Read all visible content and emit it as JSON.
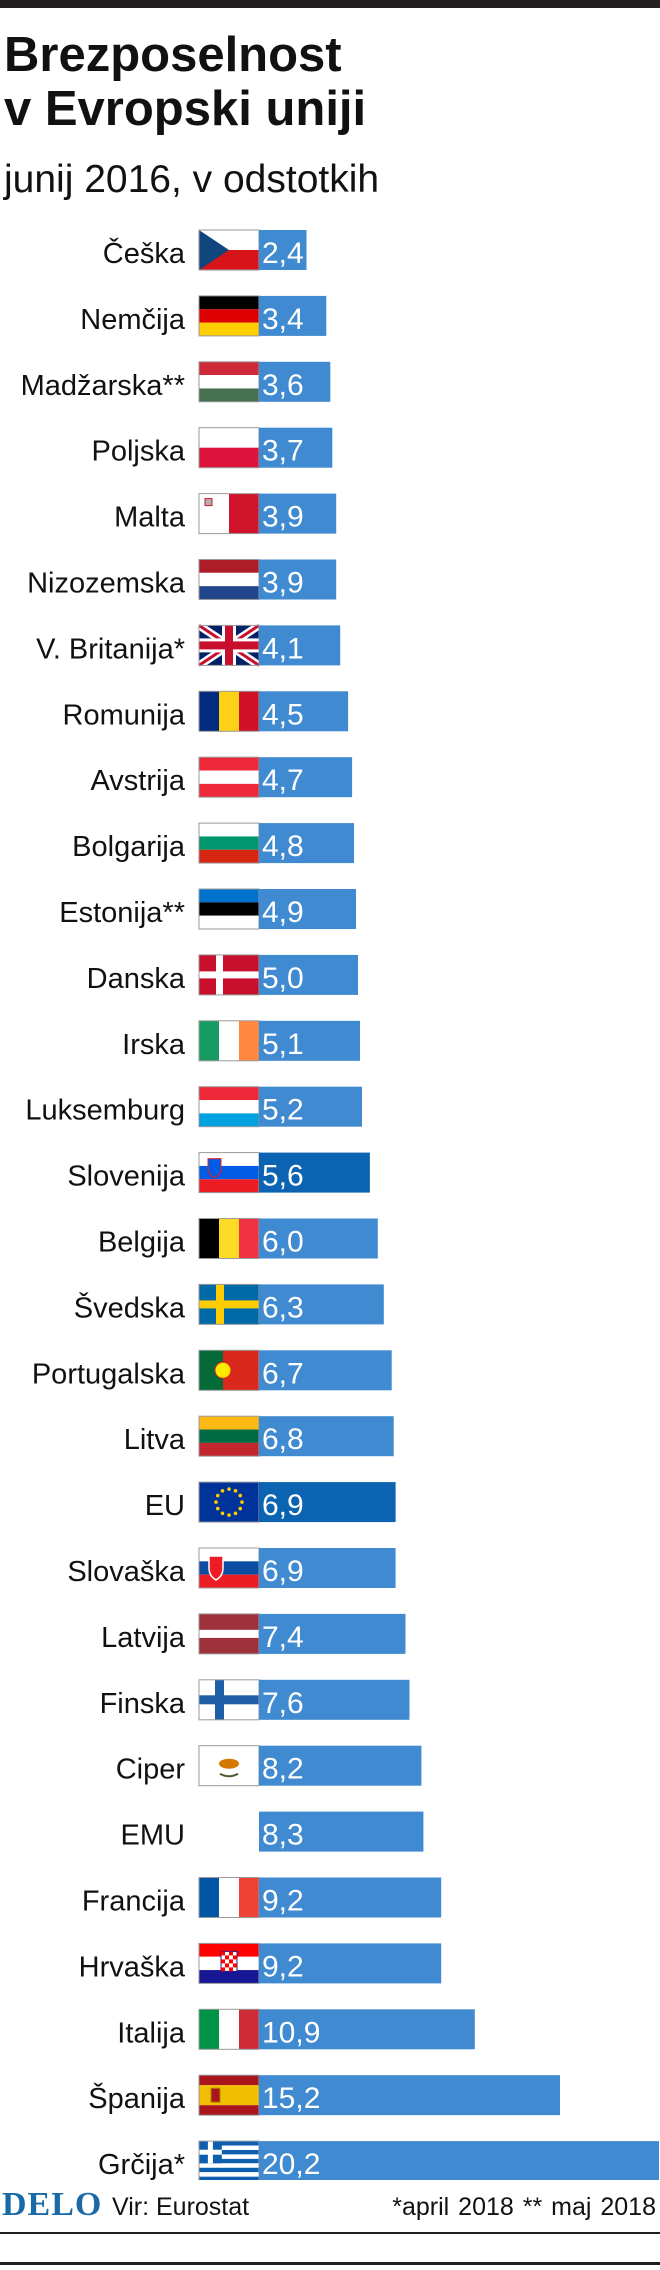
{
  "header": {
    "title_line1": "Brezposelnost",
    "title_line2": "v Evropski uniji",
    "subtitle": "junij 2016, v odstotkih"
  },
  "footer": {
    "logo": "DELO",
    "source": "Vir: Eurostat",
    "notes": "*april 2018  ** maj 2018"
  },
  "colors": {
    "bar": "#3f8ad0",
    "highlight_bar": "#0b63b2",
    "value_text": "#ffffff"
  },
  "chart_data": {
    "type": "bar",
    "orientation": "horizontal",
    "title": "Brezposelnost v Evropski uniji",
    "subtitle": "junij 2016, v odstotkih",
    "categories": [
      "Češka",
      "Nemčija",
      "Madžarska**",
      "Poljska",
      "Malta",
      "Nizozemska",
      "V. Britanija*",
      "Romunija",
      "Avstrija",
      "Bolgarija",
      "Estonija**",
      "Danska",
      "Irska",
      "Luksemburg",
      "Slovenija",
      "Belgija",
      "Švedska",
      "Portugalska",
      "Litva",
      "EU",
      "Slovaška",
      "Latvija",
      "Finska",
      "Ciper",
      "EMU",
      "Francija",
      "Hrvaška",
      "Italija",
      "Španija",
      "Grčija*"
    ],
    "values": [
      2.4,
      3.4,
      3.6,
      3.7,
      3.9,
      3.9,
      4.1,
      4.5,
      4.7,
      4.8,
      4.9,
      5.0,
      5.1,
      5.2,
      5.6,
      6.0,
      6.3,
      6.7,
      6.8,
      6.9,
      6.9,
      7.4,
      7.6,
      8.2,
      8.3,
      9.2,
      9.2,
      10.9,
      15.2,
      20.2
    ],
    "value_labels": [
      "2,4",
      "3,4",
      "3,6",
      "3,7",
      "3,9",
      "3,9",
      "4,1",
      "4,5",
      "4,7",
      "4,8",
      "4,9",
      "5,0",
      "5,1",
      "5,2",
      "5,6",
      "6,0",
      "6,3",
      "6,7",
      "6,8",
      "6,9",
      "6,9",
      "7,4",
      "7,6",
      "8,2",
      "8,3",
      "9,2",
      "9,2",
      "10,9",
      "15,2",
      "20,2"
    ],
    "flags": [
      "cz",
      "de",
      "hu",
      "pl",
      "mt",
      "nl",
      "gb",
      "ro",
      "at",
      "bg",
      "ee",
      "dk",
      "ie",
      "lu",
      "si",
      "be",
      "se",
      "pt",
      "lt",
      "eu",
      "sk",
      "lv",
      "fi",
      "cy",
      "",
      "fr",
      "hr",
      "it",
      "es",
      "gr"
    ],
    "highlighted": [
      "Slovenija",
      "EU"
    ],
    "xlim": [
      0,
      20.2
    ],
    "grid": false,
    "legend": "none"
  }
}
